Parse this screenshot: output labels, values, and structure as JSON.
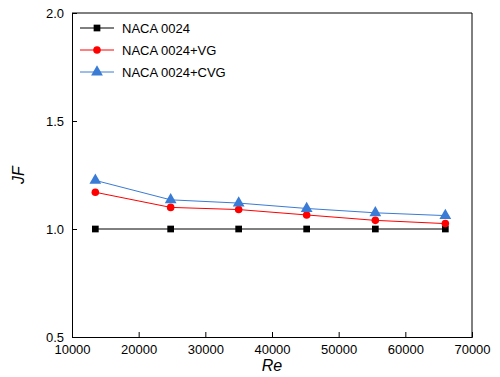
{
  "chart_data": {
    "type": "line",
    "x_label": "Re",
    "y_label": "JF",
    "x": [
      13500,
      24800,
      35000,
      45200,
      55500,
      66000
    ],
    "series": [
      {
        "name": "NACA 0024",
        "color": "#000000",
        "marker": "square",
        "values": [
          1.0,
          1.0,
          1.0,
          1.0,
          1.0,
          1.0
        ]
      },
      {
        "name": "NACA 0024+VG",
        "color": "#ff0000",
        "marker": "circle",
        "values": [
          1.17,
          1.1,
          1.09,
          1.065,
          1.04,
          1.025
        ]
      },
      {
        "name": "NACA 0024+CVG",
        "color": "#3a7bd5",
        "marker": "triangle",
        "values": [
          1.225,
          1.135,
          1.12,
          1.095,
          1.075,
          1.062
        ]
      }
    ],
    "xlim": [
      10000,
      70000
    ],
    "xticks": [
      10000,
      20000,
      30000,
      40000,
      50000,
      60000,
      70000
    ],
    "ylim": [
      0.5,
      2.0
    ],
    "yticks": [
      0.5,
      {
        "value": 1.0,
        "label": "1.0"
      },
      1.5,
      {
        "value": 2.0,
        "label": "2.0"
      }
    ],
    "legend": "upper left",
    "grid": false
  }
}
